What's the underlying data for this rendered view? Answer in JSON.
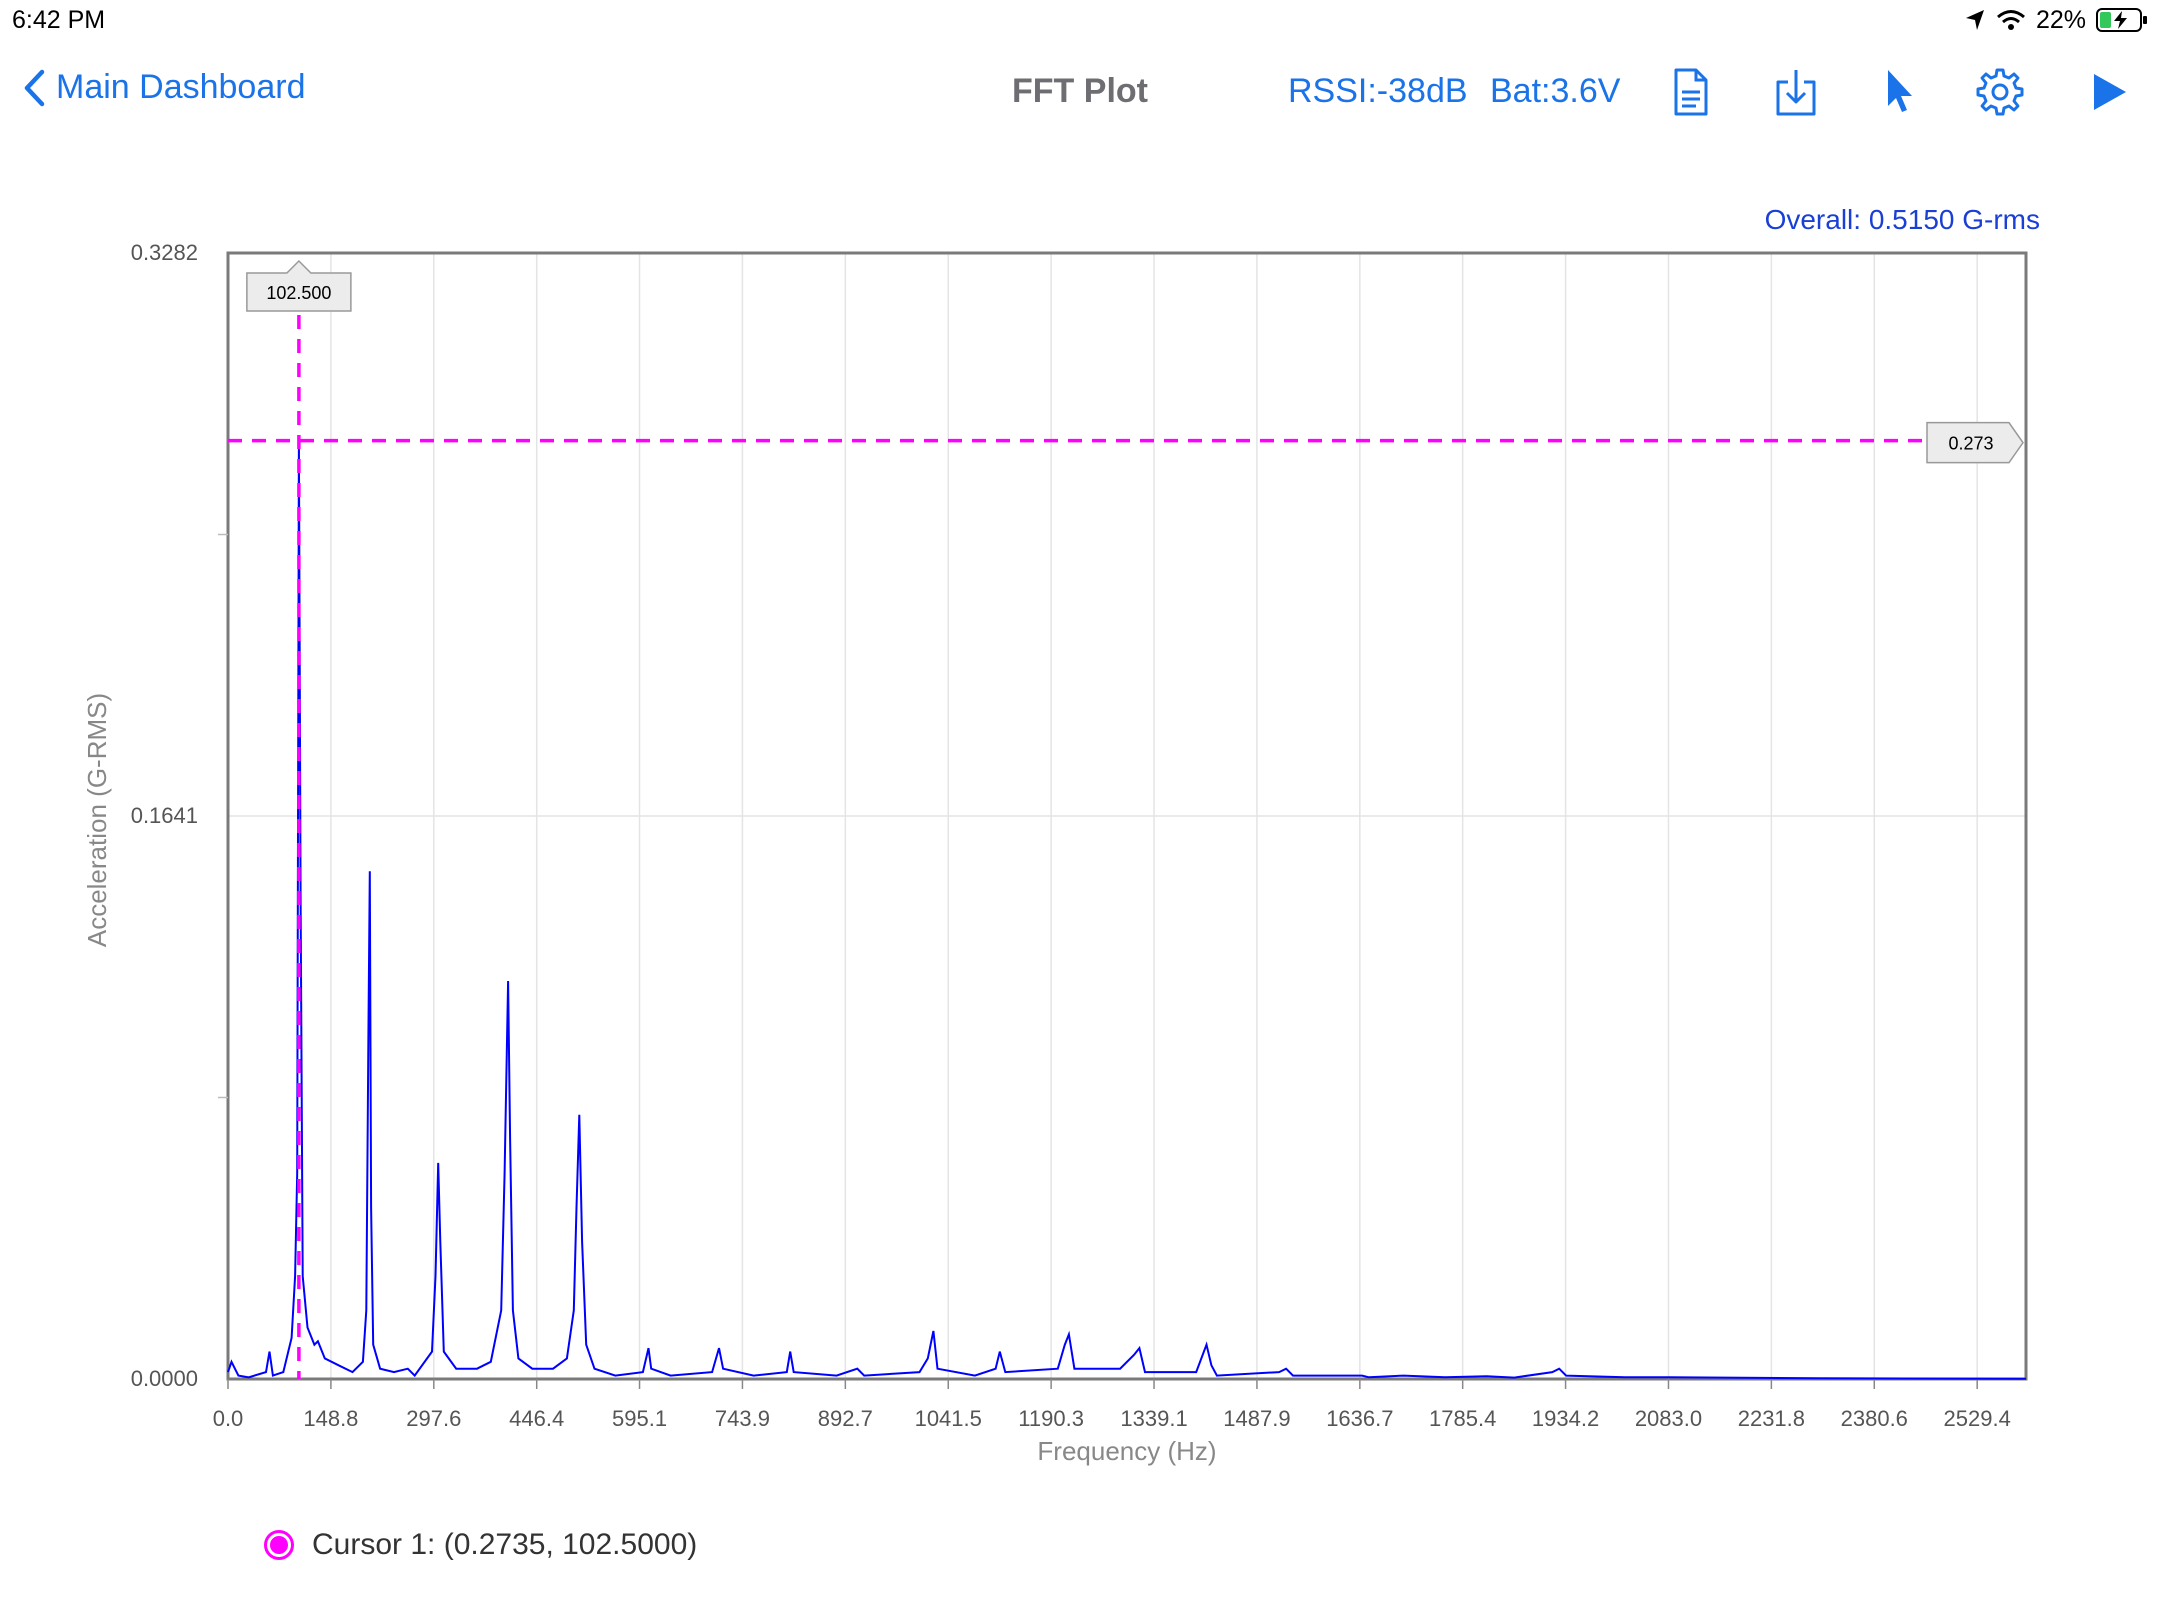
{
  "status": {
    "time": "6:42 PM",
    "battery_percent": "22%"
  },
  "nav": {
    "back_label": "Main Dashboard",
    "title": "FFT Plot",
    "rssi": "RSSI:-38dB",
    "battery": "Bat:3.6V",
    "icons": [
      "document-icon",
      "download-icon",
      "cursor-pointer-icon",
      "gear-icon",
      "play-icon"
    ]
  },
  "overall": "Overall: 0.5150 G-rms",
  "legend": {
    "cursor_label": "Cursor 1: (0.2735, 102.5000)",
    "cursor_color": "#ff00ff"
  },
  "colors": {
    "accent": "#1a73e8",
    "series": "#0000ff",
    "cursor": "#ff00ff"
  },
  "chart_data": {
    "type": "line",
    "xlabel": "Frequency (Hz)",
    "ylabel": "Acceleration (G-RMS)",
    "xlim": [
      0,
      2600
    ],
    "ylim": [
      0,
      0.3282
    ],
    "x_ticks": [
      "0.0",
      "148.8",
      "297.6",
      "446.4",
      "595.1",
      "743.9",
      "892.7",
      "1041.5",
      "1190.3",
      "1339.1",
      "1487.9",
      "1636.7",
      "1785.4",
      "1934.2",
      "2083.0",
      "2231.8",
      "2380.6",
      "2529.4"
    ],
    "y_ticks": [
      "0.0000",
      "0.1641",
      "0.3282"
    ],
    "grid": true,
    "series": [
      {
        "points": [
          [
            0,
            0.002
          ],
          [
            5,
            0.005
          ],
          [
            15,
            0.001
          ],
          [
            30,
            0.0005
          ],
          [
            55,
            0.002
          ],
          [
            60,
            0.008
          ],
          [
            65,
            0.001
          ],
          [
            80,
            0.002
          ],
          [
            92,
            0.012
          ],
          [
            97,
            0.03
          ],
          [
            100,
            0.06
          ],
          [
            102.5,
            0.2735
          ],
          [
            105,
            0.14
          ],
          [
            108,
            0.03
          ],
          [
            115,
            0.015
          ],
          [
            125,
            0.01
          ],
          [
            130,
            0.011
          ],
          [
            140,
            0.006
          ],
          [
            160,
            0.004
          ],
          [
            180,
            0.002
          ],
          [
            195,
            0.005
          ],
          [
            200,
            0.02
          ],
          [
            203,
            0.1
          ],
          [
            205,
            0.148
          ],
          [
            207,
            0.05
          ],
          [
            210,
            0.01
          ],
          [
            220,
            0.003
          ],
          [
            240,
            0.002
          ],
          [
            260,
            0.003
          ],
          [
            270,
            0.001
          ],
          [
            295,
            0.008
          ],
          [
            300,
            0.03
          ],
          [
            304,
            0.063
          ],
          [
            307,
            0.04
          ],
          [
            312,
            0.008
          ],
          [
            330,
            0.003
          ],
          [
            360,
            0.003
          ],
          [
            380,
            0.005
          ],
          [
            395,
            0.02
          ],
          [
            400,
            0.06
          ],
          [
            405,
            0.116
          ],
          [
            408,
            0.07
          ],
          [
            412,
            0.02
          ],
          [
            420,
            0.006
          ],
          [
            440,
            0.003
          ],
          [
            470,
            0.003
          ],
          [
            490,
            0.006
          ],
          [
            500,
            0.02
          ],
          [
            504,
            0.05
          ],
          [
            508,
            0.077
          ],
          [
            512,
            0.04
          ],
          [
            518,
            0.01
          ],
          [
            530,
            0.003
          ],
          [
            560,
            0.001
          ],
          [
            600,
            0.002
          ],
          [
            608,
            0.009
          ],
          [
            612,
            0.003
          ],
          [
            640,
            0.001
          ],
          [
            700,
            0.002
          ],
          [
            710,
            0.009
          ],
          [
            716,
            0.003
          ],
          [
            760,
            0.001
          ],
          [
            808,
            0.002
          ],
          [
            813,
            0.008
          ],
          [
            818,
            0.002
          ],
          [
            880,
            0.001
          ],
          [
            910,
            0.003
          ],
          [
            920,
            0.001
          ],
          [
            1000,
            0.002
          ],
          [
            1012,
            0.006
          ],
          [
            1020,
            0.014
          ],
          [
            1026,
            0.003
          ],
          [
            1080,
            0.001
          ],
          [
            1110,
            0.003
          ],
          [
            1116,
            0.008
          ],
          [
            1124,
            0.002
          ],
          [
            1200,
            0.003
          ],
          [
            1210,
            0.01
          ],
          [
            1216,
            0.013
          ],
          [
            1224,
            0.003
          ],
          [
            1290,
            0.003
          ],
          [
            1310,
            0.007
          ],
          [
            1318,
            0.009
          ],
          [
            1326,
            0.002
          ],
          [
            1400,
            0.002
          ],
          [
            1415,
            0.01
          ],
          [
            1422,
            0.004
          ],
          [
            1430,
            0.001
          ],
          [
            1520,
            0.002
          ],
          [
            1530,
            0.003
          ],
          [
            1540,
            0.001
          ],
          [
            1640,
            0.001
          ],
          [
            1650,
            0.0005
          ],
          [
            1700,
            0.001
          ],
          [
            1760,
            0.0005
          ],
          [
            1820,
            0.0008
          ],
          [
            1860,
            0.0004
          ],
          [
            1915,
            0.002
          ],
          [
            1925,
            0.003
          ],
          [
            1935,
            0.001
          ],
          [
            2020,
            0.0005
          ],
          [
            2083,
            0.0005
          ],
          [
            2300,
            0.0002
          ],
          [
            2600,
            0.0001
          ]
        ]
      }
    ],
    "cursor": {
      "x": 102.5,
      "y": 0.2735,
      "x_label": "102.500",
      "y_label": "0.273"
    }
  }
}
